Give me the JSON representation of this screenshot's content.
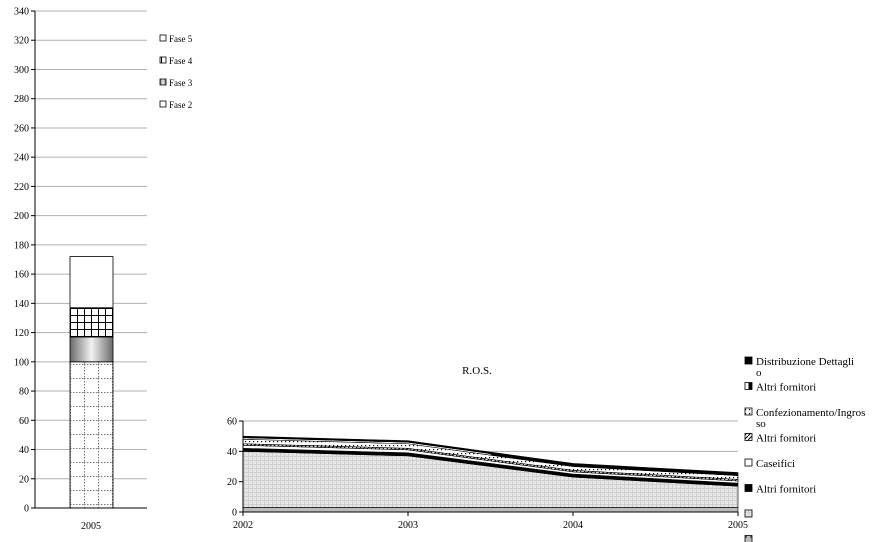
{
  "chart_data": [
    {
      "type": "bar",
      "stacked": true,
      "categories": [
        "2005"
      ],
      "ylim": [
        0,
        340
      ],
      "y_ticks": [
        0,
        20,
        40,
        60,
        80,
        100,
        120,
        140,
        160,
        180,
        200,
        220,
        240,
        260,
        280,
        300,
        320,
        340
      ],
      "grid": true,
      "legend_position": "right",
      "series": [
        {
          "name": "Fase 2",
          "values": [
            100
          ],
          "pattern": "dotted-grid"
        },
        {
          "name": "Fase 3",
          "values": [
            17
          ],
          "pattern": "gradient-grey"
        },
        {
          "name": "Fase 4",
          "values": [
            20
          ],
          "pattern": "cross-hatch"
        },
        {
          "name": "Fase 5",
          "values": [
            35
          ],
          "pattern": "white"
        }
      ]
    },
    {
      "type": "area",
      "stacked": true,
      "title": "R.O.S.",
      "x": [
        "2002",
        "2003",
        "2004",
        "2005"
      ],
      "ylim": [
        0,
        60
      ],
      "y_ticks": [
        0,
        20,
        40,
        60
      ],
      "grid": true,
      "legend_position": "right",
      "series": [
        {
          "name": "",
          "values": [
            3,
            3,
            3,
            3
          ],
          "pattern": "dark-dashed"
        },
        {
          "name": "",
          "values": [
            37,
            34,
            20,
            14
          ],
          "pattern": "light-grid"
        },
        {
          "name": "Altri fornitori",
          "values": [
            2,
            2,
            2,
            2
          ],
          "pattern": "black"
        },
        {
          "name": "Caseifici",
          "values": [
            2,
            2,
            1.5,
            1.5
          ],
          "pattern": "white"
        },
        {
          "name": "Altri fornitori",
          "values": [
            1,
            1,
            1,
            1
          ],
          "pattern": "diagonal"
        },
        {
          "name": "Confezionamento/Ingrosso",
          "values": [
            3,
            3,
            2.5,
            2.5
          ],
          "pattern": "dots"
        },
        {
          "name": "Altri fornitori",
          "values": [
            1,
            1,
            1,
            1
          ],
          "pattern": "black-half"
        },
        {
          "name": "Distribuzione Dettaglio",
          "values": [
            1,
            1,
            1,
            1
          ],
          "pattern": "black"
        }
      ]
    }
  ]
}
